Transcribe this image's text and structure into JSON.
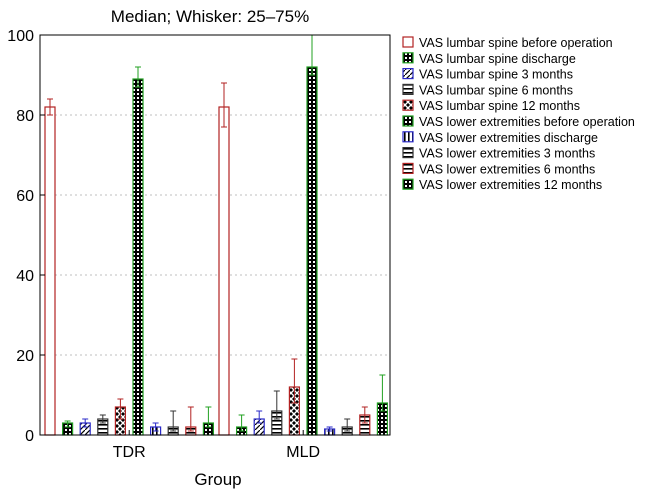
{
  "chart_data": {
    "type": "bar",
    "title": "Median; Whisker: 25–75%",
    "xlabel": "Group",
    "ylabel": "",
    "ylim": [
      0,
      100
    ],
    "yticks": [
      0,
      20,
      40,
      60,
      80,
      100
    ],
    "grid": true,
    "legend_position": "right",
    "categories": [
      "TDR",
      "MLD"
    ],
    "series": [
      {
        "name": "VAS lumbar spine before operation",
        "color": "#b22222",
        "pattern": "open",
        "values": [
          82,
          82
        ],
        "whisker_low": [
          80,
          77
        ],
        "whisker_high": [
          84,
          88
        ]
      },
      {
        "name": "VAS lumbar spine discharge",
        "color": "#22a022",
        "pattern": "dotgrid",
        "values": [
          3,
          2
        ],
        "whisker_low": [
          2,
          1
        ],
        "whisker_high": [
          3.5,
          5
        ]
      },
      {
        "name": "VAS lumbar spine 3 months",
        "color": "#2a2ac8",
        "pattern": "diagonal",
        "values": [
          3,
          4
        ],
        "whisker_low": [
          2,
          3
        ],
        "whisker_high": [
          4,
          6
        ]
      },
      {
        "name": "VAS lumbar spine 6 months",
        "color": "#333333",
        "pattern": "hstripes",
        "values": [
          4,
          6
        ],
        "whisker_low": [
          3,
          4
        ],
        "whisker_high": [
          5,
          11
        ]
      },
      {
        "name": "VAS lumbar spine 12 months",
        "color": "#b22222",
        "pattern": "cross",
        "values": [
          7,
          12
        ],
        "whisker_low": [
          4,
          8
        ],
        "whisker_high": [
          9,
          19
        ]
      },
      {
        "name": "VAS lower extremities before operation",
        "color": "#22a022",
        "pattern": "dotgrid",
        "values": [
          89,
          92
        ],
        "whisker_low": [
          87,
          90
        ],
        "whisker_high": [
          92,
          100
        ]
      },
      {
        "name": "VAS lower extremities discharge",
        "color": "#2a2ac8",
        "pattern": "vstripes",
        "values": [
          2,
          1.5
        ],
        "whisker_low": [
          1,
          1
        ],
        "whisker_high": [
          3,
          2
        ]
      },
      {
        "name": "VAS lower extremities 3 months",
        "color": "#333333",
        "pattern": "hstripes",
        "values": [
          2,
          2
        ],
        "whisker_low": [
          1,
          1
        ],
        "whisker_high": [
          6,
          4
        ]
      },
      {
        "name": "VAS lower extremities 6 months",
        "color": "#b22222",
        "pattern": "hstripes",
        "values": [
          2,
          5
        ],
        "whisker_low": [
          1,
          3
        ],
        "whisker_high": [
          7,
          7
        ]
      },
      {
        "name": "VAS lower extremities 12 months",
        "color": "#22a022",
        "pattern": "dotgrid",
        "values": [
          3,
          8
        ],
        "whisker_low": [
          2,
          6
        ],
        "whisker_high": [
          7,
          15
        ]
      }
    ]
  }
}
